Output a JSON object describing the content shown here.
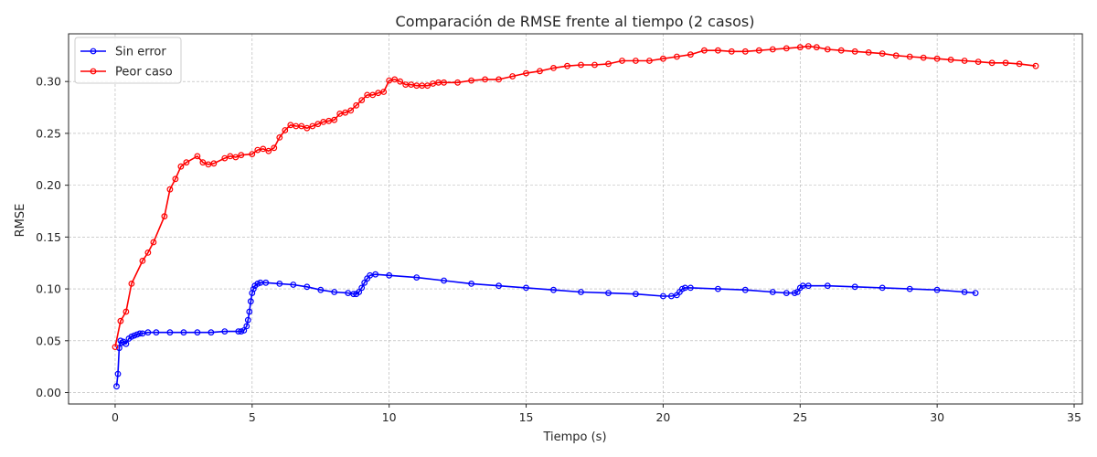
{
  "chart_data": {
    "type": "line",
    "title": "Comparación de RMSE frente al tiempo (2 casos)",
    "xlabel": "Tiempo (s)",
    "ylabel": "RMSE",
    "xlim": [
      -1.7,
      35.3
    ],
    "ylim": [
      -0.011,
      0.346
    ],
    "xticks": [
      0,
      5,
      10,
      15,
      20,
      25,
      30,
      35
    ],
    "xtick_labels": [
      "0",
      "5",
      "10",
      "15",
      "20",
      "25",
      "30",
      "35"
    ],
    "yticks": [
      0.0,
      0.05,
      0.1,
      0.15,
      0.2,
      0.25,
      0.3
    ],
    "ytick_labels": [
      "0.00",
      "0.05",
      "0.10",
      "0.15",
      "0.20",
      "0.25",
      "0.30"
    ],
    "grid": true,
    "legend_position": "top-left",
    "series": [
      {
        "name": "Sin error",
        "color": "#0000ff",
        "marker": "open-circle",
        "x": [
          0.05,
          0.1,
          0.15,
          0.2,
          0.25,
          0.3,
          0.4,
          0.5,
          0.6,
          0.7,
          0.8,
          0.9,
          1.0,
          1.2,
          1.5,
          2.0,
          2.5,
          3.0,
          3.5,
          4.0,
          4.5,
          4.6,
          4.7,
          4.8,
          4.85,
          4.9,
          4.95,
          5.0,
          5.05,
          5.1,
          5.2,
          5.3,
          5.5,
          6.0,
          6.5,
          7.0,
          7.5,
          8.0,
          8.5,
          8.7,
          8.8,
          8.9,
          9.0,
          9.1,
          9.2,
          9.3,
          9.5,
          10.0,
          11.0,
          12.0,
          13.0,
          14.0,
          15.0,
          16.0,
          17.0,
          18.0,
          19.0,
          20.0,
          20.3,
          20.5,
          20.6,
          20.7,
          20.8,
          21.0,
          22.0,
          23.0,
          24.0,
          24.5,
          24.8,
          24.9,
          25.0,
          25.1,
          25.3,
          26.0,
          27.0,
          28.0,
          29.0,
          30.0,
          31.0,
          31.4
        ],
        "y": [
          0.006,
          0.018,
          0.043,
          0.05,
          0.048,
          0.049,
          0.047,
          0.052,
          0.054,
          0.055,
          0.056,
          0.057,
          0.057,
          0.058,
          0.058,
          0.058,
          0.058,
          0.058,
          0.058,
          0.059,
          0.059,
          0.059,
          0.06,
          0.064,
          0.07,
          0.078,
          0.088,
          0.096,
          0.1,
          0.103,
          0.105,
          0.106,
          0.106,
          0.105,
          0.104,
          0.102,
          0.099,
          0.097,
          0.096,
          0.095,
          0.095,
          0.097,
          0.101,
          0.106,
          0.11,
          0.113,
          0.114,
          0.113,
          0.111,
          0.108,
          0.105,
          0.103,
          0.101,
          0.099,
          0.097,
          0.096,
          0.095,
          0.093,
          0.093,
          0.094,
          0.097,
          0.1,
          0.101,
          0.101,
          0.1,
          0.099,
          0.097,
          0.096,
          0.096,
          0.097,
          0.101,
          0.103,
          0.103,
          0.103,
          0.102,
          0.101,
          0.1,
          0.099,
          0.097,
          0.096
        ]
      },
      {
        "name": "Peor caso",
        "color": "#ff0000",
        "marker": "open-circle",
        "x": [
          0.0,
          0.2,
          0.4,
          0.6,
          1.0,
          1.2,
          1.4,
          1.8,
          2.0,
          2.2,
          2.4,
          2.6,
          3.0,
          3.2,
          3.4,
          3.6,
          4.0,
          4.2,
          4.4,
          4.6,
          5.0,
          5.2,
          5.4,
          5.6,
          5.8,
          6.0,
          6.2,
          6.4,
          6.6,
          6.8,
          7.0,
          7.2,
          7.4,
          7.6,
          7.8,
          8.0,
          8.2,
          8.4,
          8.6,
          8.8,
          9.0,
          9.2,
          9.4,
          9.6,
          9.8,
          10.0,
          10.2,
          10.4,
          10.6,
          10.8,
          11.0,
          11.2,
          11.4,
          11.6,
          11.8,
          12.0,
          12.5,
          13.0,
          13.5,
          14.0,
          14.5,
          15.0,
          15.5,
          16.0,
          16.5,
          17.0,
          17.5,
          18.0,
          18.5,
          19.0,
          19.5,
          20.0,
          20.5,
          21.0,
          21.5,
          22.0,
          22.5,
          23.0,
          23.5,
          24.0,
          24.5,
          25.0,
          25.3,
          25.6,
          26.0,
          26.5,
          27.0,
          27.5,
          28.0,
          28.5,
          29.0,
          29.5,
          30.0,
          30.5,
          31.0,
          31.5,
          32.0,
          32.5,
          33.0,
          33.6
        ],
        "y": [
          0.044,
          0.069,
          0.078,
          0.105,
          0.127,
          0.135,
          0.145,
          0.17,
          0.196,
          0.206,
          0.218,
          0.222,
          0.228,
          0.222,
          0.22,
          0.221,
          0.226,
          0.228,
          0.227,
          0.229,
          0.23,
          0.234,
          0.235,
          0.233,
          0.236,
          0.246,
          0.253,
          0.258,
          0.257,
          0.257,
          0.255,
          0.257,
          0.259,
          0.261,
          0.262,
          0.263,
          0.269,
          0.27,
          0.272,
          0.277,
          0.282,
          0.287,
          0.287,
          0.289,
          0.29,
          0.301,
          0.302,
          0.3,
          0.297,
          0.297,
          0.296,
          0.296,
          0.296,
          0.298,
          0.299,
          0.299,
          0.299,
          0.301,
          0.302,
          0.302,
          0.305,
          0.308,
          0.31,
          0.313,
          0.315,
          0.316,
          0.316,
          0.317,
          0.32,
          0.32,
          0.32,
          0.322,
          0.324,
          0.326,
          0.33,
          0.33,
          0.329,
          0.329,
          0.33,
          0.331,
          0.332,
          0.333,
          0.334,
          0.333,
          0.331,
          0.33,
          0.329,
          0.328,
          0.327,
          0.325,
          0.324,
          0.323,
          0.322,
          0.321,
          0.32,
          0.319,
          0.318,
          0.318,
          0.317,
          0.315
        ]
      }
    ]
  }
}
